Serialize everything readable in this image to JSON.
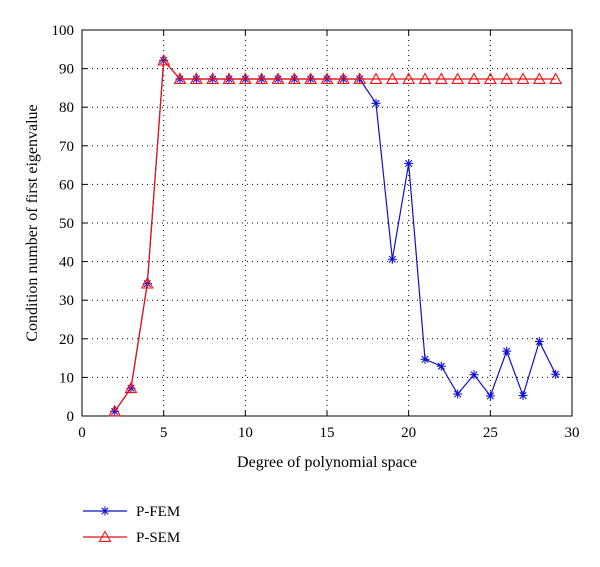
{
  "chart_data": {
    "type": "line",
    "xlabel": "Degree of polynomial space",
    "ylabel": "Condition number of first eigenvalue",
    "xlim": [
      0,
      30
    ],
    "ylim": [
      0,
      100
    ],
    "xticks": [
      0,
      5,
      10,
      15,
      20,
      25,
      30
    ],
    "yticks": [
      0,
      10,
      20,
      30,
      40,
      50,
      60,
      70,
      80,
      90,
      100
    ],
    "grid": true,
    "legend_position": "bottom-left, below plot",
    "series": [
      {
        "name": "P-FEM",
        "color": "#1010cc",
        "marker": "asterisk",
        "x": [
          2,
          3,
          4,
          5,
          6,
          7,
          8,
          9,
          10,
          11,
          12,
          13,
          14,
          15,
          16,
          17,
          18,
          19,
          20,
          21,
          22,
          23,
          24,
          25,
          26,
          27,
          28,
          29
        ],
        "y": [
          1.2,
          7.2,
          34.3,
          92.1,
          87.3,
          87.3,
          87.3,
          87.3,
          87.3,
          87.3,
          87.3,
          87.3,
          87.3,
          87.3,
          87.3,
          87.3,
          81.0,
          40.6,
          65.4,
          14.7,
          12.9,
          5.7,
          10.7,
          5.2,
          16.8,
          5.3,
          19.3,
          10.8
        ]
      },
      {
        "name": "P-SEM",
        "color": "#ee1111",
        "marker": "triangle",
        "x": [
          2,
          3,
          4,
          5,
          6,
          7,
          8,
          9,
          10,
          11,
          12,
          13,
          14,
          15,
          16,
          17,
          18,
          19,
          20,
          21,
          22,
          23,
          24,
          25,
          26,
          27,
          28,
          29
        ],
        "y": [
          1.2,
          7.2,
          34.3,
          92.1,
          87.3,
          87.3,
          87.3,
          87.3,
          87.3,
          87.3,
          87.3,
          87.3,
          87.3,
          87.3,
          87.3,
          87.3,
          87.3,
          87.3,
          87.3,
          87.3,
          87.3,
          87.3,
          87.3,
          87.3,
          87.3,
          87.3,
          87.3,
          87.3
        ]
      }
    ]
  }
}
